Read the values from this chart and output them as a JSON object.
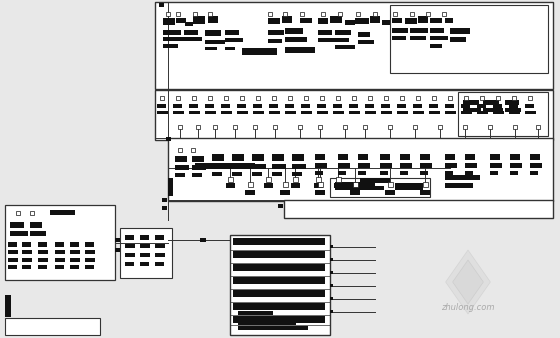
{
  "bg_color": "#e8e8e8",
  "line_color": "#333333",
  "box_color": "#ffffff",
  "black": "#111111",
  "wm_color": "#c8c8c8"
}
